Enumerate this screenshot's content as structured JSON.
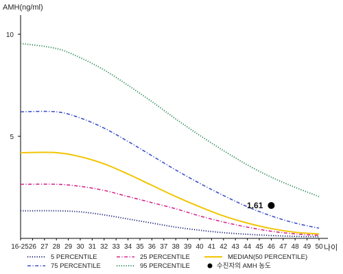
{
  "chart_data": {
    "type": "line",
    "ylabel": "AMH(ng/ml)",
    "xlabel": "나이",
    "y_ticks": [
      5,
      10
    ],
    "ylim": [
      0,
      11
    ],
    "x_ticks": [
      "16-25",
      "26",
      "27",
      "28",
      "29",
      "30",
      "31",
      "32",
      "33",
      "34",
      "35",
      "36",
      "37",
      "38",
      "39",
      "40",
      "41",
      "42",
      "43",
      "44",
      "45",
      "46",
      "47",
      "48",
      "49",
      "50"
    ],
    "x_numeric": [
      25,
      26,
      27,
      28,
      29,
      30,
      31,
      32,
      33,
      34,
      35,
      36,
      37,
      38,
      39,
      40,
      41,
      42,
      43,
      44,
      45,
      46,
      47,
      48,
      49,
      50
    ],
    "xlim": [
      25,
      50
    ],
    "grid": false,
    "legend_position": "bottom",
    "series": [
      {
        "name": "5 PERCENTILE",
        "color": "#1f2a7a",
        "dash": "dotted",
        "x": [
          25,
          28,
          30,
          32,
          34,
          36,
          38,
          40,
          42,
          44,
          46,
          48,
          50
        ],
        "values": [
          1.35,
          1.35,
          1.3,
          1.15,
          0.95,
          0.75,
          0.55,
          0.4,
          0.28,
          0.2,
          0.14,
          0.1,
          0.08
        ]
      },
      {
        "name": "25 PERCENTILE",
        "color": "#d6248c",
        "dash": "dashdot",
        "x": [
          25,
          28,
          30,
          32,
          34,
          36,
          38,
          40,
          42,
          44,
          46,
          48,
          50
        ],
        "values": [
          2.65,
          2.65,
          2.55,
          2.35,
          2.05,
          1.75,
          1.45,
          1.1,
          0.8,
          0.55,
          0.35,
          0.22,
          0.15
        ]
      },
      {
        "name": "75 PERCENTILE",
        "color": "#3a4fc8",
        "dash": "dashdot",
        "x": [
          25,
          28,
          30,
          32,
          34,
          36,
          38,
          40,
          42,
          44,
          46,
          48,
          50
        ],
        "values": [
          6.2,
          6.2,
          5.9,
          5.4,
          4.75,
          4.05,
          3.35,
          2.7,
          2.1,
          1.55,
          1.1,
          0.75,
          0.5
        ]
      },
      {
        "name": "MEDIAN(50 PERCENTILE)",
        "color": "#f2c400",
        "dash": "solid",
        "x": [
          25,
          28,
          30,
          32,
          34,
          36,
          38,
          40,
          42,
          44,
          46,
          48,
          50
        ],
        "values": [
          4.2,
          4.2,
          4.0,
          3.65,
          3.15,
          2.6,
          2.05,
          1.55,
          1.1,
          0.75,
          0.48,
          0.3,
          0.22
        ]
      },
      {
        "name": "95 PERCENTILE",
        "color": "#2e8b57",
        "dash": "dotted",
        "x": [
          25,
          28,
          30,
          32,
          34,
          36,
          38,
          40,
          42,
          44,
          46,
          48,
          50
        ],
        "values": [
          9.55,
          9.3,
          8.85,
          8.25,
          7.5,
          6.7,
          5.85,
          5.05,
          4.3,
          3.6,
          3.0,
          2.5,
          2.05
        ]
      }
    ],
    "patient_point": {
      "name": "수진자의 AMH 농도",
      "x": 46,
      "y": 1.61,
      "label": "1.61",
      "color": "#000000"
    },
    "legend_order": [
      "5 PERCENTILE",
      "25 PERCENTILE",
      "MEDIAN(50 PERCENTILE)",
      "75 PERCENTILE",
      "95 PERCENTILE",
      "수진자의 AMH 농도"
    ]
  }
}
